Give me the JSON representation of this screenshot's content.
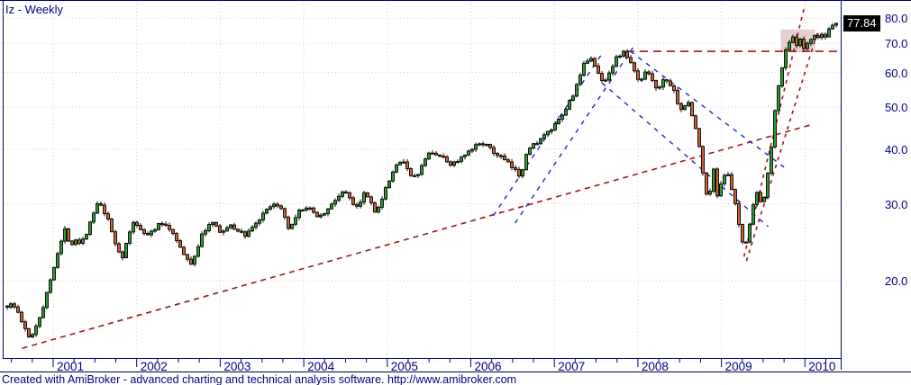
{
  "window": {
    "title": "Iz - Weekly"
  },
  "price_axis": {
    "labels": [
      "80.0",
      "70.0",
      "60.0",
      "50.0",
      "40.0",
      "30.0",
      "20.0"
    ],
    "values": [
      80,
      70,
      60,
      50,
      40,
      30,
      20
    ],
    "last_price": "77.84"
  },
  "time_axis": {
    "years": [
      "2001",
      "2002",
      "2003",
      "2004",
      "2005",
      "2006",
      "2007",
      "2008",
      "2009",
      "2010"
    ]
  },
  "footer": {
    "text": "Created with AmiBroker - advanced charting and technical analysis software. http://www.amibroker.com"
  },
  "colors": {
    "axis": "#000080",
    "label": "#000080",
    "grid": "#f3c3c3",
    "candle_up": "#2f9e32",
    "candle_down": "#d2622f",
    "wick": "#101010",
    "body_outline": "#000000",
    "red_trendline": "#a01414",
    "blue_trendline": "#2020cc",
    "box_fill": "#cf9f9f",
    "tag_bg": "#000000",
    "tag_fg": "#ffffff",
    "separator": "#000040"
  },
  "chart_data": {
    "type": "candlestick",
    "interval": "weekly",
    "title": "Iz - Weekly",
    "price_scale": "log",
    "grid": "dotted-pink",
    "x_range_years": [
      2000.42,
      2010.43
    ],
    "ylim": [
      13.3,
      87.6
    ],
    "price_ticks": [
      20,
      30,
      40,
      50,
      60,
      70,
      80
    ],
    "year_ticks": [
      2001,
      2002,
      2003,
      2004,
      2005,
      2006,
      2007,
      2008,
      2009,
      2010
    ],
    "last_close": 77.84,
    "close_path": [
      [
        2000.45,
        17.5
      ],
      [
        2000.51,
        17.7
      ],
      [
        2000.58,
        16.9
      ],
      [
        2000.64,
        15.8
      ],
      [
        2000.71,
        14.8
      ],
      [
        2000.77,
        15.3
      ],
      [
        2000.84,
        16.6
      ],
      [
        2000.9,
        17.9
      ],
      [
        2000.97,
        20.2
      ],
      [
        2001.03,
        22.4
      ],
      [
        2001.1,
        24.7
      ],
      [
        2001.14,
        26.1
      ],
      [
        2001.21,
        24.2
      ],
      [
        2001.27,
        24.9
      ],
      [
        2001.33,
        24.4
      ],
      [
        2001.4,
        25.8
      ],
      [
        2001.46,
        27.6
      ],
      [
        2001.52,
        29.9
      ],
      [
        2001.57,
        29.6
      ],
      [
        2001.63,
        28.2
      ],
      [
        2001.68,
        26.8
      ],
      [
        2001.73,
        24.7
      ],
      [
        2001.79,
        23.3
      ],
      [
        2001.84,
        22.6
      ],
      [
        2001.9,
        25.4
      ],
      [
        2001.96,
        27.1
      ],
      [
        2002.03,
        26.6
      ],
      [
        2002.13,
        25.4
      ],
      [
        2002.2,
        26.1
      ],
      [
        2002.26,
        26.8
      ],
      [
        2002.33,
        27.1
      ],
      [
        2002.39,
        26.3
      ],
      [
        2002.46,
        25.4
      ],
      [
        2002.52,
        23.8
      ],
      [
        2002.59,
        22.4
      ],
      [
        2002.65,
        21.9
      ],
      [
        2002.72,
        23.5
      ],
      [
        2002.78,
        25.4
      ],
      [
        2002.84,
        26.6
      ],
      [
        2002.91,
        27.1
      ],
      [
        2002.97,
        26.2
      ],
      [
        2003.04,
        25.9
      ],
      [
        2003.1,
        26.8
      ],
      [
        2003.17,
        26.3
      ],
      [
        2003.23,
        26.0
      ],
      [
        2003.3,
        25.4
      ],
      [
        2003.36,
        26.3
      ],
      [
        2003.43,
        27.1
      ],
      [
        2003.49,
        27.9
      ],
      [
        2003.56,
        29.0
      ],
      [
        2003.62,
        29.5
      ],
      [
        2003.69,
        30.0
      ],
      [
        2003.75,
        28.5
      ],
      [
        2003.82,
        26.1
      ],
      [
        2003.88,
        27.1
      ],
      [
        2003.94,
        28.7
      ],
      [
        2004.01,
        29.5
      ],
      [
        2004.07,
        29.1
      ],
      [
        2004.14,
        28.3
      ],
      [
        2004.2,
        28.2
      ],
      [
        2004.27,
        28.8
      ],
      [
        2004.33,
        29.8
      ],
      [
        2004.4,
        31.0
      ],
      [
        2004.46,
        32.0
      ],
      [
        2004.53,
        31.3
      ],
      [
        2004.59,
        30.1
      ],
      [
        2004.66,
        29.7
      ],
      [
        2004.72,
        32.1
      ],
      [
        2004.79,
        30.7
      ],
      [
        2004.85,
        29.0
      ],
      [
        2004.92,
        29.8
      ],
      [
        2004.98,
        32.4
      ],
      [
        2005.05,
        34.7
      ],
      [
        2005.11,
        36.6
      ],
      [
        2005.17,
        38.2
      ],
      [
        2005.24,
        36.4
      ],
      [
        2005.3,
        34.0
      ],
      [
        2005.37,
        35.3
      ],
      [
        2005.43,
        37.0
      ],
      [
        2005.5,
        39.3
      ],
      [
        2005.56,
        39.1
      ],
      [
        2005.63,
        38.7
      ],
      [
        2005.69,
        37.8
      ],
      [
        2005.76,
        37.0
      ],
      [
        2005.82,
        37.4
      ],
      [
        2005.89,
        38.2
      ],
      [
        2005.95,
        38.9
      ],
      [
        2006.02,
        40.0
      ],
      [
        2006.08,
        41.2
      ],
      [
        2006.14,
        41.6
      ],
      [
        2006.21,
        40.4
      ],
      [
        2006.27,
        39.3
      ],
      [
        2006.34,
        38.7
      ],
      [
        2006.4,
        37.8
      ],
      [
        2006.47,
        36.7
      ],
      [
        2006.53,
        35.7
      ],
      [
        2006.6,
        34.7
      ],
      [
        2006.66,
        39.3
      ],
      [
        2006.73,
        40.6
      ],
      [
        2006.79,
        41.6
      ],
      [
        2006.86,
        42.6
      ],
      [
        2006.92,
        43.6
      ],
      [
        2006.99,
        44.9
      ],
      [
        2007.05,
        46.4
      ],
      [
        2007.12,
        48.6
      ],
      [
        2007.18,
        51.5
      ],
      [
        2007.25,
        54.7
      ],
      [
        2007.31,
        58.7
      ],
      [
        2007.37,
        63.7
      ],
      [
        2007.44,
        65.2
      ],
      [
        2007.5,
        60.8
      ],
      [
        2007.57,
        57.4
      ],
      [
        2007.63,
        58.5
      ],
      [
        2007.7,
        62.5
      ],
      [
        2007.76,
        65.5
      ],
      [
        2007.83,
        66.8
      ],
      [
        2007.89,
        64.3
      ],
      [
        2007.96,
        60.2
      ],
      [
        2008.02,
        56.6
      ],
      [
        2008.09,
        60.8
      ],
      [
        2008.15,
        59.7
      ],
      [
        2008.22,
        54.7
      ],
      [
        2008.28,
        56.8
      ],
      [
        2008.34,
        57.9
      ],
      [
        2008.41,
        55.5
      ],
      [
        2008.47,
        51.7
      ],
      [
        2008.54,
        48.8
      ],
      [
        2008.6,
        51.7
      ],
      [
        2008.67,
        46.4
      ],
      [
        2008.73,
        41.2
      ],
      [
        2008.79,
        34.0
      ],
      [
        2008.84,
        29.8
      ],
      [
        2008.9,
        36.6
      ],
      [
        2008.95,
        31.3
      ],
      [
        2009.0,
        34.0
      ],
      [
        2009.06,
        35.7
      ],
      [
        2009.11,
        33.2
      ],
      [
        2009.17,
        29.5
      ],
      [
        2009.22,
        26.2
      ],
      [
        2009.27,
        23.5
      ],
      [
        2009.33,
        26.6
      ],
      [
        2009.38,
        29.8
      ],
      [
        2009.44,
        32.4
      ],
      [
        2009.49,
        28.8
      ],
      [
        2009.54,
        34.0
      ],
      [
        2009.6,
        41.2
      ],
      [
        2009.64,
        48.6
      ],
      [
        2009.68,
        55.2
      ],
      [
        2009.73,
        62.5
      ],
      [
        2009.77,
        67.8
      ],
      [
        2009.81,
        70.4
      ],
      [
        2009.86,
        72.1
      ],
      [
        2009.9,
        68.7
      ],
      [
        2009.94,
        71.4
      ],
      [
        2009.99,
        67.4
      ],
      [
        2010.03,
        69.4
      ],
      [
        2010.07,
        71.0
      ],
      [
        2010.12,
        72.8
      ],
      [
        2010.16,
        71.4
      ],
      [
        2010.2,
        73.5
      ],
      [
        2010.24,
        72.1
      ],
      [
        2010.29,
        75.7
      ],
      [
        2010.33,
        77.5
      ],
      [
        2010.37,
        77.84
      ]
    ],
    "trendlines": [
      {
        "name": "long-support",
        "color": "red",
        "dash": "6 5",
        "from": [
          2000.63,
          14.0
        ],
        "to": [
          2010.1,
          45.7
        ]
      },
      {
        "name": "top-resistance",
        "color": "red",
        "dash": "9 6",
        "from": [
          2007.86,
          67.1
        ],
        "to": [
          2010.43,
          67.1
        ]
      },
      {
        "name": "recovery-fan-steep",
        "color": "red",
        "dash": "4 5",
        "from": [
          2009.27,
          22.7
        ],
        "to": [
          2010.0,
          85.9
        ]
      },
      {
        "name": "recovery-fan-outer",
        "color": "red",
        "dash": "4 5",
        "from": [
          2009.3,
          22.2
        ],
        "to": [
          2010.16,
          75.3
        ]
      },
      {
        "name": "rising-channel-1",
        "color": "blue",
        "dash": "5 6",
        "from": [
          2006.27,
          28.2
        ],
        "to": [
          2007.59,
          67.1
        ]
      },
      {
        "name": "rising-channel-2",
        "color": "blue",
        "dash": "5 6",
        "from": [
          2006.53,
          27.1
        ],
        "to": [
          2007.94,
          68.4
        ]
      },
      {
        "name": "falling-channel-1",
        "color": "blue",
        "dash": "5 6",
        "from": [
          2007.91,
          67.1
        ],
        "to": [
          2009.75,
          36.4
        ]
      },
      {
        "name": "falling-channel-2",
        "color": "blue",
        "dash": "5 6",
        "from": [
          2007.57,
          56.8
        ],
        "to": [
          2009.56,
          26.6
        ]
      }
    ],
    "shaded_box": {
      "x_years": [
        2009.71,
        2010.12
      ],
      "price": [
        66.8,
        75.3
      ]
    }
  }
}
